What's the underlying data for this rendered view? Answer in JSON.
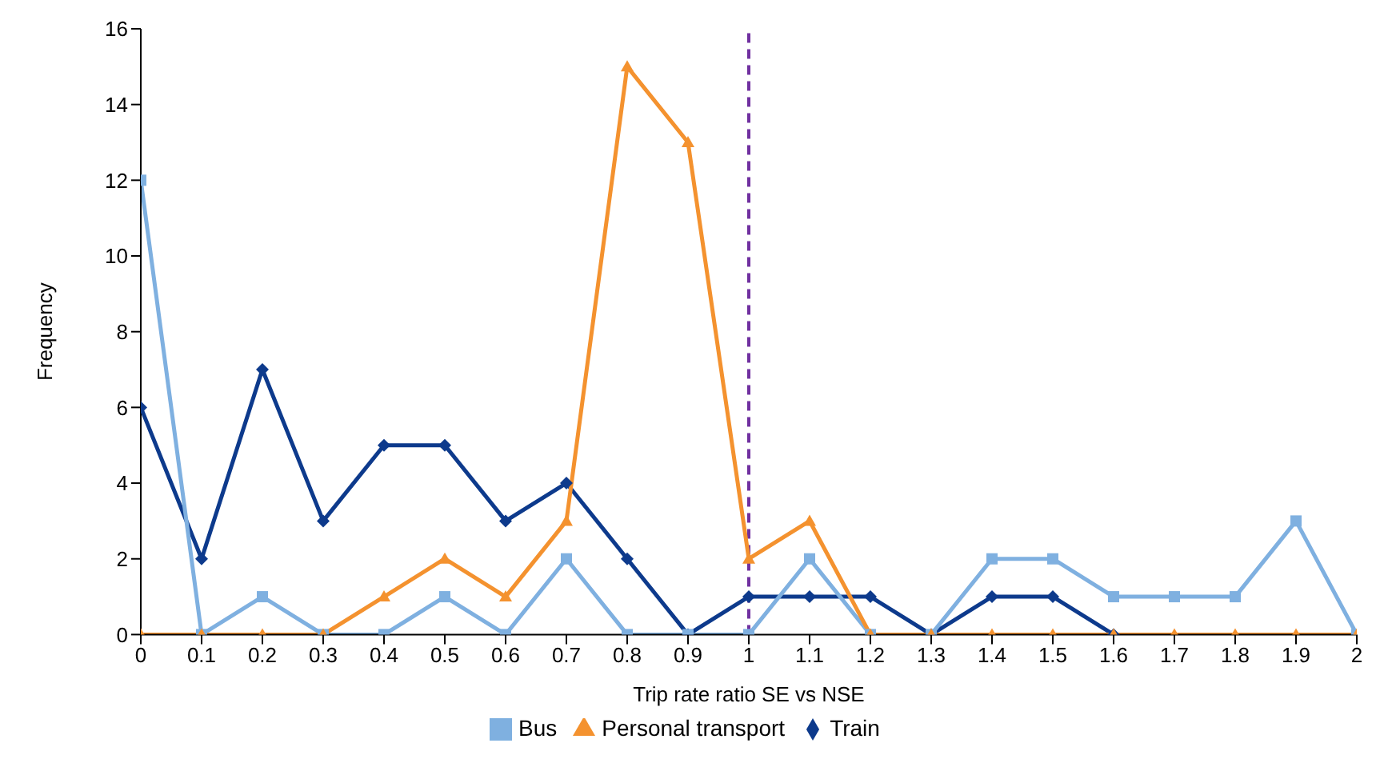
{
  "chart_data": {
    "type": "line",
    "xlabel": "Trip rate ratio SE vs NSE",
    "ylabel": "Frequency",
    "x": [
      0,
      0.1,
      0.2,
      0.3,
      0.4,
      0.5,
      0.6,
      0.7,
      0.8,
      0.9,
      1,
      1.1,
      1.2,
      1.3,
      1.4,
      1.5,
      1.6,
      1.7,
      1.8,
      1.9,
      2
    ],
    "xlim": [
      0,
      2
    ],
    "xticks": [
      0,
      0.1,
      0.2,
      0.3,
      0.4,
      0.5,
      0.6,
      0.7,
      0.8,
      0.9,
      1,
      1.1,
      1.2,
      1.3,
      1.4,
      1.5,
      1.6,
      1.7,
      1.8,
      1.9,
      2
    ],
    "ylim": [
      0,
      16
    ],
    "yticks": [
      0,
      2,
      4,
      6,
      8,
      10,
      12,
      14,
      16
    ],
    "series": [
      {
        "name": "Train",
        "color": "#0d3a8c",
        "marker": "diamond",
        "values": [
          6,
          2,
          7,
          3,
          5,
          5,
          3,
          4,
          2,
          0,
          1,
          1,
          1,
          0,
          1,
          1,
          0,
          null,
          null,
          null,
          null
        ]
      },
      {
        "name": "Bus",
        "color": "#7fb0e0",
        "marker": "square",
        "values": [
          12,
          0,
          1,
          0,
          0,
          1,
          0,
          2,
          0,
          0,
          0,
          2,
          0,
          0,
          2,
          2,
          1,
          1,
          1,
          3,
          0
        ]
      },
      {
        "name": "Personal transport",
        "color": "#f4922f",
        "marker": "triangle",
        "values": [
          0,
          0,
          0,
          0,
          1,
          2,
          1,
          3,
          15,
          13,
          2,
          3,
          0,
          0,
          0,
          0,
          0,
          0,
          0,
          0,
          0
        ]
      }
    ],
    "ref_lines": [
      {
        "axis": "x",
        "value": 1,
        "color": "#7030a0",
        "line_style": "dashed"
      }
    ],
    "grid": false,
    "legend": "bottom",
    "line_style": "solid"
  }
}
